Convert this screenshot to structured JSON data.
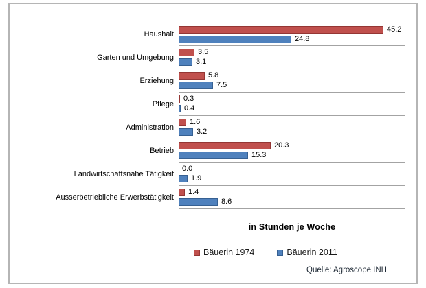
{
  "chart_data": {
    "type": "bar",
    "orientation": "horizontal",
    "title": "",
    "xlabel": "in Stunden je Woche",
    "ylabel": "",
    "xlim": [
      0,
      50
    ],
    "grid": "horizontal-category-separators",
    "legend_position": "bottom",
    "value_labels": "outside-end",
    "value_label_format": "one-decimal",
    "categories": [
      "Haushalt",
      "Garten und Umgebung",
      "Erziehung",
      "Pflege",
      "Administration",
      "Betrieb",
      "Landwirtschaftsnahe Tätigkeit",
      "Ausserbetriebliche Erwerbstätigkeit"
    ],
    "series": [
      {
        "name": "Bäuerin 1974",
        "color": "#c0504d",
        "border_color": "#943634",
        "values": [
          45.2,
          3.5,
          5.8,
          0.3,
          1.6,
          20.3,
          0.0,
          1.4
        ]
      },
      {
        "name": "Bäuerin 2011",
        "color": "#4f81bd",
        "border_color": "#366092",
        "values": [
          24.8,
          3.1,
          7.5,
          0.4,
          3.2,
          15.3,
          1.9,
          8.6
        ]
      }
    ]
  },
  "source": "Quelle: Agroscope INH",
  "colors": {
    "frame_border": "#b5b5b5",
    "gridline": "#a3a3a3",
    "axis_line": "#7f7f7f",
    "background": "#ffffff",
    "text": "#000000"
  }
}
